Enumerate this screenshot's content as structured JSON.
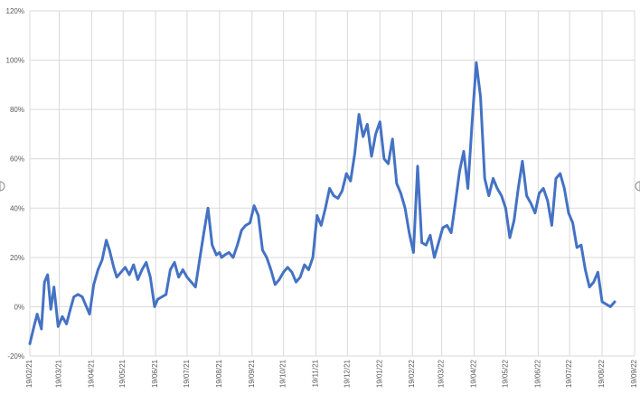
{
  "chart_data": {
    "type": "line",
    "title": "",
    "xlabel": "",
    "ylabel": "",
    "ylim": [
      -0.2,
      1.2
    ],
    "xlim": [
      "2021-02-19",
      "2022-09-19"
    ],
    "grid": {
      "horizontal": true,
      "vertical": true
    },
    "line_color": "#4472c4",
    "y_tick_values": [
      -0.2,
      0,
      0.2,
      0.4,
      0.6,
      0.8,
      1.0,
      1.2
    ],
    "y_tick_labels": [
      "-20%",
      "0%",
      "20%",
      "40%",
      "60%",
      "80%",
      "100%",
      "120%"
    ],
    "x_tick_values": [
      "2021-02-19",
      "2021-03-19",
      "2021-04-19",
      "2021-05-19",
      "2021-06-19",
      "2021-07-19",
      "2021-08-19",
      "2021-09-19",
      "2021-10-19",
      "2021-11-19",
      "2021-12-19",
      "2022-01-19",
      "2022-02-19",
      "2022-03-19",
      "2022-04-19",
      "2022-05-19",
      "2022-06-19",
      "2022-07-19",
      "2022-08-19",
      "2022-09-19"
    ],
    "x_tick_labels": [
      "19/02/21",
      "19/03/21",
      "19/04/21",
      "19/05/21",
      "19/06/21",
      "19/07/21",
      "19/08/21",
      "19/09/21",
      "19/10/21",
      "19/11/21",
      "19/12/21",
      "19/01/22",
      "19/02/22",
      "19/03/22",
      "19/04/22",
      "19/05/22",
      "19/06/22",
      "19/07/22",
      "19/08/22",
      "19/09/22"
    ],
    "series": [
      {
        "x": [
          "2021-02-19",
          "2021-02-23",
          "2021-02-26",
          "2021-03-02",
          "2021-03-05",
          "2021-03-08",
          "2021-03-11",
          "2021-03-14",
          "2021-03-18",
          "2021-03-22",
          "2021-03-26",
          "2021-03-29",
          "2021-04-02",
          "2021-04-06",
          "2021-04-10",
          "2021-04-14",
          "2021-04-17",
          "2021-04-21",
          "2021-04-25",
          "2021-04-29",
          "2021-05-03",
          "2021-05-06",
          "2021-05-10",
          "2021-05-13",
          "2021-05-17",
          "2021-05-21",
          "2021-05-25",
          "2021-05-29",
          "2021-06-02",
          "2021-06-06",
          "2021-06-10",
          "2021-06-14",
          "2021-06-18",
          "2021-06-21",
          "2021-06-25",
          "2021-06-29",
          "2021-07-03",
          "2021-07-07",
          "2021-07-11",
          "2021-07-15",
          "2021-07-19",
          "2021-07-23",
          "2021-07-27",
          "2021-07-31",
          "2021-08-04",
          "2021-08-08",
          "2021-08-12",
          "2021-08-16",
          "2021-08-19",
          "2021-08-21",
          "2021-08-24",
          "2021-08-28",
          "2021-09-01",
          "2021-09-05",
          "2021-09-09",
          "2021-09-13",
          "2021-09-17",
          "2021-09-21",
          "2021-09-25",
          "2021-09-29",
          "2021-10-03",
          "2021-10-07",
          "2021-10-11",
          "2021-10-15",
          "2021-10-19",
          "2021-10-23",
          "2021-10-27",
          "2021-10-31",
          "2021-11-04",
          "2021-11-08",
          "2021-11-12",
          "2021-11-16",
          "2021-11-20",
          "2021-11-24",
          "2021-11-28",
          "2021-12-02",
          "2021-12-06",
          "2021-12-10",
          "2021-12-14",
          "2021-12-18",
          "2021-12-22",
          "2021-12-26",
          "2021-12-30",
          "2022-01-03",
          "2022-01-07",
          "2022-01-11",
          "2022-01-15",
          "2022-01-19",
          "2022-01-23",
          "2022-01-27",
          "2022-01-31",
          "2022-02-04",
          "2022-02-08",
          "2022-02-12",
          "2022-02-16",
          "2022-02-20",
          "2022-02-24",
          "2022-02-28",
          "2022-03-04",
          "2022-03-08",
          "2022-03-12",
          "2022-03-16",
          "2022-03-20",
          "2022-03-24",
          "2022-03-28",
          "2022-04-01",
          "2022-04-05",
          "2022-04-09",
          "2022-04-13",
          "2022-04-17",
          "2022-04-21",
          "2022-04-25",
          "2022-04-29",
          "2022-05-03",
          "2022-05-07",
          "2022-05-11",
          "2022-05-15",
          "2022-05-19",
          "2022-05-23",
          "2022-05-27",
          "2022-05-31",
          "2022-06-04",
          "2022-06-08",
          "2022-06-12",
          "2022-06-16",
          "2022-06-20",
          "2022-06-24",
          "2022-06-28",
          "2022-07-02",
          "2022-07-06",
          "2022-07-10",
          "2022-07-14",
          "2022-07-18",
          "2022-07-22",
          "2022-07-26",
          "2022-07-30",
          "2022-08-03",
          "2022-08-07",
          "2022-08-11",
          "2022-08-15",
          "2022-08-19",
          "2022-08-23",
          "2022-08-27",
          "2022-08-31"
        ],
        "y": [
          -0.15,
          -0.08,
          -0.03,
          -0.09,
          0.1,
          0.13,
          -0.01,
          0.08,
          -0.08,
          -0.04,
          -0.07,
          -0.02,
          0.04,
          0.05,
          0.04,
          0.0,
          -0.03,
          0.09,
          0.15,
          0.19,
          0.27,
          0.23,
          0.16,
          0.12,
          0.14,
          0.16,
          0.13,
          0.17,
          0.11,
          0.15,
          0.18,
          0.12,
          0.0,
          0.03,
          0.04,
          0.05,
          0.15,
          0.18,
          0.12,
          0.15,
          0.12,
          0.1,
          0.08,
          0.19,
          0.3,
          0.4,
          0.25,
          0.21,
          0.22,
          0.2,
          0.21,
          0.22,
          0.2,
          0.25,
          0.31,
          0.33,
          0.34,
          0.41,
          0.37,
          0.23,
          0.2,
          0.15,
          0.09,
          0.11,
          0.14,
          0.16,
          0.14,
          0.1,
          0.12,
          0.17,
          0.15,
          0.2,
          0.37,
          0.33,
          0.4,
          0.48,
          0.45,
          0.44,
          0.47,
          0.54,
          0.51,
          0.62,
          0.78,
          0.69,
          0.74,
          0.61,
          0.7,
          0.75,
          0.6,
          0.58,
          0.68,
          0.5,
          0.46,
          0.4,
          0.3,
          0.22,
          0.57,
          0.26,
          0.25,
          0.29,
          0.2,
          0.26,
          0.32,
          0.33,
          0.3,
          0.42,
          0.55,
          0.63,
          0.48,
          0.75,
          0.99,
          0.85,
          0.52,
          0.45,
          0.52,
          0.48,
          0.45,
          0.4,
          0.28,
          0.35,
          0.48,
          0.59,
          0.45,
          0.42,
          0.38,
          0.46,
          0.48,
          0.43,
          0.33,
          0.52,
          0.54,
          0.48,
          0.38,
          0.34,
          0.24,
          0.25,
          0.15,
          0.08,
          0.1,
          0.14,
          0.02,
          0.01,
          0.0,
          0.02
        ]
      }
    ]
  }
}
